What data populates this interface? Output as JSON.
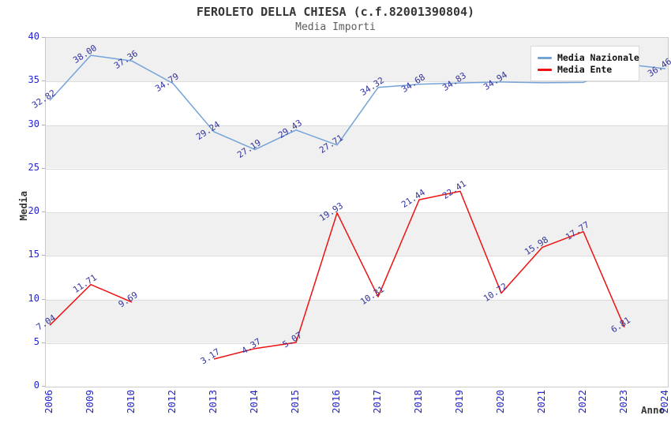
{
  "header": {
    "title": "FEROLETO DELLA CHIESA (c.f.82001390804)",
    "subtitle": "Media Importi"
  },
  "axes": {
    "y_label": "Media",
    "x_label": "Anno",
    "y_tick_labels": [
      "0",
      "5",
      "10",
      "15",
      "20",
      "25",
      "30",
      "35",
      "40"
    ]
  },
  "legend": {
    "items": [
      {
        "label": "Media Nazionale",
        "color": "#74a3d8"
      },
      {
        "label": "Media Ente",
        "color": "#ee1111"
      }
    ]
  },
  "colors": {
    "nazionale_line": "#74a3d8",
    "ente_line": "#ee1111",
    "tick_label_blue": "#2424cc",
    "data_label_navy": "#32329b",
    "band_gray": "#f0f0f0",
    "band_white": "#ffffff",
    "plot_border": "#cccccc",
    "title_gray": "#363636"
  },
  "chart_data": {
    "type": "line",
    "title": "FEROLETO DELLA CHIESA (c.f.82001390804)",
    "subtitle": "Media Importi",
    "xlabel": "Anno",
    "ylabel": "Media",
    "ylim": [
      0,
      40
    ],
    "y_ticks": [
      0,
      5,
      10,
      15,
      20,
      25,
      30,
      35,
      40
    ],
    "grid": "horizontal-bands-alternating",
    "legend_position": "top-right-inside",
    "categories": [
      "2006",
      "2009",
      "2010",
      "2012",
      "2013",
      "2014",
      "2015",
      "2016",
      "2017",
      "2018",
      "2019",
      "2020",
      "2021",
      "2022",
      "2023",
      "2024"
    ],
    "series": [
      {
        "name": "Media Nazionale",
        "color": "#74a3d8",
        "values": [
          32.82,
          38.0,
          37.36,
          34.79,
          29.24,
          27.19,
          29.43,
          27.71,
          34.32,
          34.68,
          34.83,
          34.94,
          34.85,
          34.9,
          37.0,
          36.46
        ],
        "labels": [
          "32.82",
          "38.00",
          "37.36",
          "34.79",
          "29.24",
          "27.19",
          "29.43",
          "27.71",
          "34.32",
          "34.68",
          "34.83",
          "34.94",
          null,
          null,
          null,
          "36.46"
        ]
      },
      {
        "name": "Media Ente",
        "color": "#ee1111",
        "values": [
          7.04,
          11.71,
          9.69,
          null,
          3.17,
          4.37,
          5.07,
          19.93,
          10.31,
          21.44,
          22.41,
          10.72,
          15.98,
          17.77,
          6.81,
          null
        ],
        "labels": [
          "7.04",
          "11.71",
          "9.69",
          null,
          "3.17",
          "4.37",
          "5.07",
          "19.93",
          "10.31",
          "21.44",
          "22.41",
          "10.72",
          "15.98",
          "17.77",
          "6.81",
          null
        ]
      }
    ]
  }
}
